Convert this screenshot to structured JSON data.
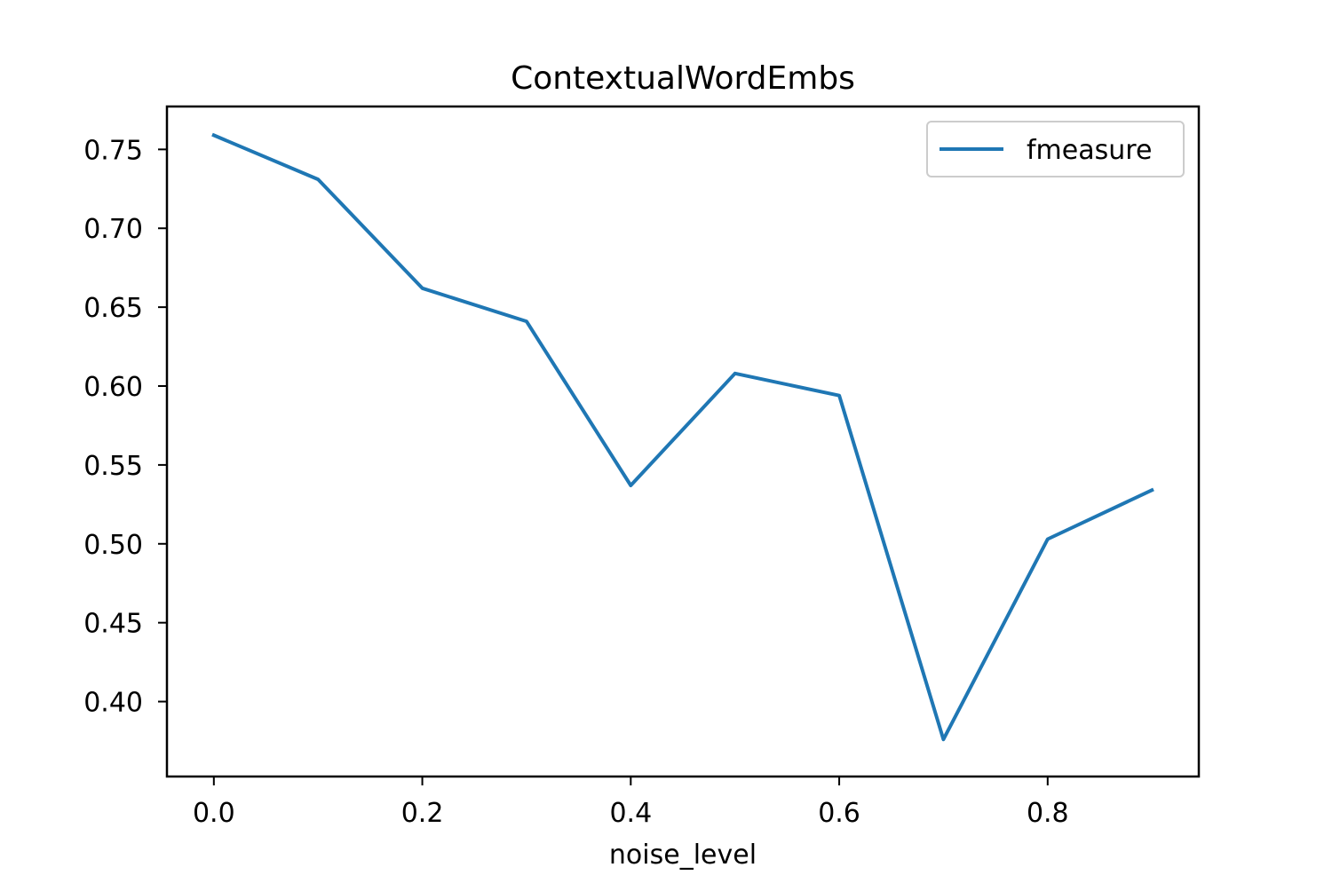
{
  "chart_data": {
    "type": "line",
    "title": "ContextualWordEmbs",
    "xlabel": "noise_level",
    "ylabel": "",
    "x": [
      0.0,
      0.1,
      0.2,
      0.3,
      0.4,
      0.5,
      0.6,
      0.7,
      0.8,
      0.9
    ],
    "series": [
      {
        "name": "fmeasure",
        "color": "#1f77b4",
        "values": [
          0.759,
          0.731,
          0.662,
          0.641,
          0.537,
          0.608,
          0.594,
          0.376,
          0.503,
          0.534
        ]
      }
    ],
    "xlim": [
      -0.045,
      0.945
    ],
    "ylim": [
      0.3525,
      0.7772
    ],
    "xticks": [
      0.0,
      0.2,
      0.4,
      0.6,
      0.8
    ],
    "xtick_labels": [
      "0.0",
      "0.2",
      "0.4",
      "0.6",
      "0.8"
    ],
    "yticks": [
      0.4,
      0.45,
      0.5,
      0.55,
      0.6,
      0.65,
      0.7,
      0.75
    ],
    "ytick_labels": [
      "0.40",
      "0.45",
      "0.50",
      "0.55",
      "0.60",
      "0.65",
      "0.70",
      "0.75"
    ],
    "grid": false,
    "legend_position": "top-right"
  }
}
